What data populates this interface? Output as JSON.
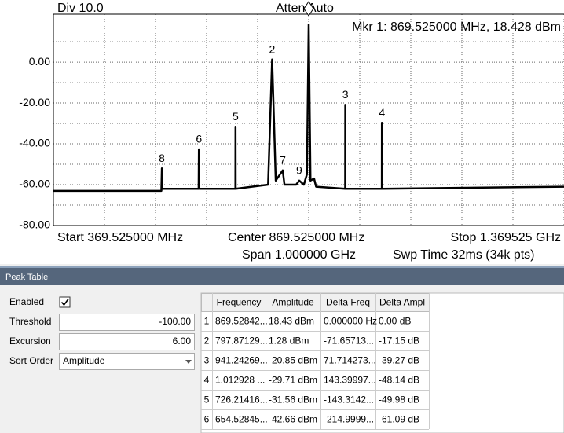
{
  "chart_data": {
    "type": "line",
    "div_label": "Div 10.0",
    "atten_label": "Atten Auto",
    "marker_readout": "Mkr 1: 869.525000 MHz, 18.428 dBm",
    "start_label": "Start 369.525000 MHz",
    "center_label": "Center 869.525000 MHz",
    "stop_label": "Stop 1.369525 GHz",
    "span_label": "Span 1.000000 GHz",
    "sweep_label": "Swp Time 32ms (34k pts)",
    "color": "#000000",
    "x": [
      369.525,
      581,
      582,
      583,
      654,
      654.5,
      655,
      726,
      726.2,
      726.5,
      790,
      797.9,
      805,
      818.7,
      822,
      845,
      851,
      860,
      866,
      869.525,
      873,
      880,
      884,
      941,
      941.24,
      941.5,
      1012.8,
      1012.93,
      1013.1,
      1369.525
    ],
    "values": [
      -63,
      -63,
      -52,
      -62,
      -62,
      -42.7,
      -62,
      -62,
      -31.6,
      -62,
      -60,
      1.3,
      -58,
      -53,
      -60,
      -60,
      -58,
      -60,
      -55,
      18.4,
      -58,
      -57,
      -61,
      -62,
      -20.9,
      -62,
      -62,
      -29.7,
      -62,
      -61
    ],
    "active_marker": {
      "x": 869.525,
      "y": 18.428
    },
    "markers": [
      {
        "label": "2",
        "x": 797.87,
        "y": 1.28
      },
      {
        "label": "3",
        "x": 941.24,
        "y": -20.85
      },
      {
        "label": "4",
        "x": 1012.93,
        "y": -29.71
      },
      {
        "label": "5",
        "x": 726.21,
        "y": -31.56
      },
      {
        "label": "6",
        "x": 654.53,
        "y": -42.66
      },
      {
        "label": "7",
        "x": 818.7,
        "y": -53
      },
      {
        "label": "8",
        "x": 581.8,
        "y": -52
      },
      {
        "label": "9",
        "x": 851,
        "y": -58
      }
    ],
    "xlim": [
      369.525,
      1369.525
    ],
    "xgrid": [
      369.525,
      469.525,
      569.525,
      669.525,
      769.525,
      869.525,
      969.525,
      1069.525,
      1169.525,
      1269.525,
      1369.525
    ],
    "ylim": [
      -80,
      23.5
    ],
    "yticks": [
      {
        "value": 0,
        "label": "0.00"
      },
      {
        "value": -20,
        "label": "-20.00"
      },
      {
        "value": -40,
        "label": "-40.00"
      },
      {
        "value": -60,
        "label": "-60.00"
      },
      {
        "value": -80,
        "label": "-80.00"
      }
    ],
    "minor_yticks": [
      10,
      -10,
      -30,
      -50,
      -70
    ]
  },
  "peak_table": {
    "title": "Peak Table",
    "enabled_label": "Enabled",
    "enabled": true,
    "threshold_label": "Threshold",
    "threshold": "-100.00",
    "excursion_label": "Excursion",
    "excursion": "6.00",
    "sort_label": "Sort Order",
    "sort": "Amplitude",
    "columns": [
      "Frequency",
      "Amplitude",
      "Delta Freq",
      "Delta Ampl"
    ],
    "rows": [
      [
        "1",
        "869.52842...",
        "18.43 dBm",
        "0.000000 Hz",
        "0.00 dB"
      ],
      [
        "2",
        "797.87129...",
        "1.28 dBm",
        "-71.65713...",
        "-17.15 dB"
      ],
      [
        "3",
        "941.24269...",
        "-20.85 dBm",
        "71.714273...",
        "-39.27 dB"
      ],
      [
        "4",
        "1.012928 ...",
        "-29.71 dBm",
        "143.39997...",
        "-48.14 dB"
      ],
      [
        "5",
        "726.21416...",
        "-31.56 dBm",
        "-143.3142...",
        "-49.98 dB"
      ],
      [
        "6",
        "654.52845...",
        "-42.66 dBm",
        "-214.9999...",
        "-61.09 dB"
      ]
    ]
  }
}
